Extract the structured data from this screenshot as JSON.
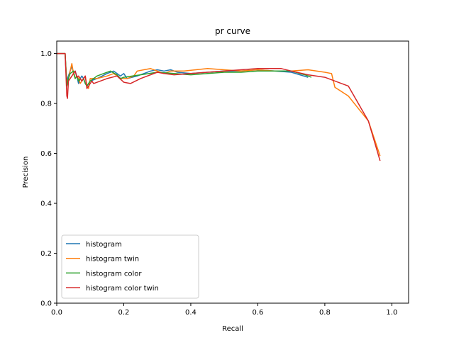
{
  "chart_data": {
    "type": "line",
    "title": "pr curve",
    "xlabel": "Recall",
    "ylabel": "Precision",
    "xlim": [
      0.0,
      1.05
    ],
    "ylim": [
      0.0,
      1.05
    ],
    "xticks": [
      "0.0",
      "0.2",
      "0.4",
      "0.6",
      "0.8",
      "1.0"
    ],
    "yticks": [
      "0.0",
      "0.2",
      "0.4",
      "0.6",
      "0.8",
      "1.0"
    ],
    "grid": false,
    "legend_position": "lower-left",
    "series": [
      {
        "name": "histogram",
        "color": "#1f77b4",
        "x": [
          0.0,
          0.02,
          0.025,
          0.03,
          0.032,
          0.04,
          0.045,
          0.05,
          0.055,
          0.06,
          0.065,
          0.07,
          0.075,
          0.08,
          0.085,
          0.09,
          0.095,
          0.1,
          0.12,
          0.15,
          0.17,
          0.19,
          0.2,
          0.21,
          0.24,
          0.28,
          0.3,
          0.32,
          0.34,
          0.36,
          0.4,
          0.45,
          0.5,
          0.55,
          0.6,
          0.65,
          0.7,
          0.75
        ],
        "y": [
          1.0,
          1.0,
          1.0,
          0.87,
          0.9,
          0.93,
          0.95,
          0.92,
          0.93,
          0.91,
          0.88,
          0.9,
          0.91,
          0.9,
          0.88,
          0.87,
          0.88,
          0.89,
          0.9,
          0.92,
          0.93,
          0.91,
          0.92,
          0.9,
          0.91,
          0.93,
          0.935,
          0.93,
          0.935,
          0.925,
          0.92,
          0.925,
          0.93,
          0.93,
          0.935,
          0.93,
          0.925,
          0.905
        ]
      },
      {
        "name": "histogram twin",
        "color": "#ff7f0e",
        "x": [
          0.0,
          0.02,
          0.025,
          0.03,
          0.035,
          0.045,
          0.05,
          0.055,
          0.06,
          0.065,
          0.07,
          0.075,
          0.08,
          0.085,
          0.09,
          0.095,
          0.1,
          0.12,
          0.15,
          0.17,
          0.19,
          0.21,
          0.23,
          0.24,
          0.26,
          0.28,
          0.3,
          0.32,
          0.34,
          0.38,
          0.45,
          0.5,
          0.55,
          0.6,
          0.65,
          0.7,
          0.75,
          0.8,
          0.82,
          0.83,
          0.87,
          0.93,
          0.965
        ],
        "y": [
          1.0,
          1.0,
          1.0,
          0.88,
          0.9,
          0.96,
          0.92,
          0.9,
          0.91,
          0.9,
          0.88,
          0.89,
          0.9,
          0.91,
          0.87,
          0.86,
          0.9,
          0.9,
          0.91,
          0.92,
          0.9,
          0.9,
          0.91,
          0.93,
          0.935,
          0.94,
          0.93,
          0.92,
          0.93,
          0.93,
          0.94,
          0.935,
          0.93,
          0.935,
          0.93,
          0.93,
          0.935,
          0.925,
          0.92,
          0.865,
          0.83,
          0.73,
          0.59
        ]
      },
      {
        "name": "histogram color",
        "color": "#2ca02c",
        "x": [
          0.0,
          0.02,
          0.025,
          0.03,
          0.035,
          0.04,
          0.05,
          0.055,
          0.06,
          0.065,
          0.07,
          0.075,
          0.08,
          0.085,
          0.09,
          0.1,
          0.12,
          0.14,
          0.16,
          0.18,
          0.19,
          0.2,
          0.25,
          0.3,
          0.35,
          0.4,
          0.45,
          0.5,
          0.55,
          0.6,
          0.65,
          0.7,
          0.74,
          0.76
        ],
        "y": [
          1.0,
          1.0,
          1.0,
          0.87,
          0.9,
          0.92,
          0.93,
          0.9,
          0.91,
          0.89,
          0.9,
          0.89,
          0.9,
          0.88,
          0.87,
          0.89,
          0.91,
          0.92,
          0.93,
          0.915,
          0.9,
          0.905,
          0.915,
          0.925,
          0.92,
          0.915,
          0.92,
          0.925,
          0.925,
          0.93,
          0.93,
          0.93,
          0.915,
          0.905
        ]
      },
      {
        "name": "histogram color twin",
        "color": "#d62728",
        "x": [
          0.0,
          0.02,
          0.025,
          0.03,
          0.032,
          0.035,
          0.04,
          0.045,
          0.05,
          0.055,
          0.06,
          0.065,
          0.07,
          0.075,
          0.08,
          0.085,
          0.09,
          0.095,
          0.1,
          0.105,
          0.11,
          0.15,
          0.18,
          0.2,
          0.22,
          0.25,
          0.3,
          0.32,
          0.35,
          0.4,
          0.45,
          0.5,
          0.55,
          0.6,
          0.65,
          0.67,
          0.7,
          0.75,
          0.8,
          0.85,
          0.87,
          0.93,
          0.965
        ],
        "y": [
          1.0,
          1.0,
          1.0,
          0.83,
          0.82,
          0.89,
          0.9,
          0.91,
          0.92,
          0.93,
          0.905,
          0.91,
          0.9,
          0.89,
          0.9,
          0.91,
          0.86,
          0.87,
          0.88,
          0.89,
          0.88,
          0.9,
          0.91,
          0.885,
          0.88,
          0.9,
          0.925,
          0.92,
          0.915,
          0.92,
          0.925,
          0.93,
          0.935,
          0.94,
          0.94,
          0.94,
          0.93,
          0.915,
          0.905,
          0.88,
          0.87,
          0.73,
          0.57
        ]
      }
    ]
  }
}
